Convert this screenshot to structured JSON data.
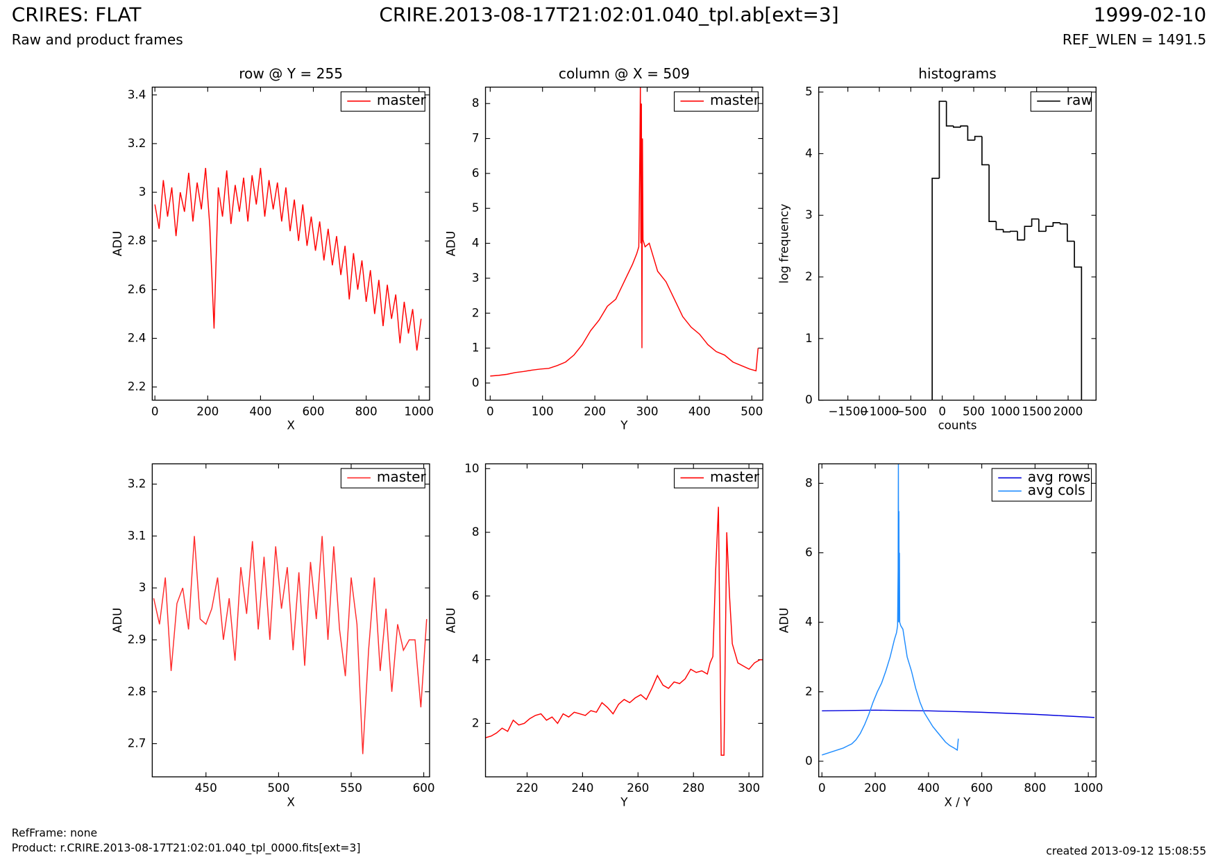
{
  "header": {
    "title": "CRIRES: FLAT",
    "subtitle": "Raw and product frames",
    "file": "CRIRE.2013-08-17T21:02:01.040_tpl.ab[ext=3]",
    "date": "1999-02-10",
    "ref_wlen": "REF_WLEN = 1491.5"
  },
  "footer": {
    "ref_frame": "RefFrame: none",
    "product": "Product: r.CRIRE.2013-08-17T21:02:01.040_tpl_0000.fits[ext=3]",
    "created": "created 2013-09-12 15:08:55"
  },
  "chart_data": [
    {
      "type": "line",
      "title": "row @ Y = 255",
      "x_label": "X",
      "y_label": "ADU",
      "xlim": [
        -10,
        1040
      ],
      "ylim": [
        2.146,
        3.432
      ],
      "xticks": [
        0,
        200,
        400,
        600,
        800,
        1000
      ],
      "yticks": [
        2.2,
        2.4,
        2.6,
        2.8,
        3.0,
        3.2,
        3.4
      ],
      "x": [
        0,
        16,
        32,
        48,
        64,
        80,
        96,
        112,
        128,
        144,
        160,
        176,
        192,
        208,
        224,
        240,
        256,
        272,
        288,
        304,
        320,
        336,
        352,
        368,
        384,
        400,
        416,
        432,
        448,
        464,
        480,
        496,
        512,
        528,
        544,
        560,
        576,
        592,
        608,
        624,
        640,
        656,
        672,
        688,
        704,
        720,
        736,
        752,
        768,
        784,
        800,
        816,
        832,
        848,
        864,
        880,
        896,
        912,
        928,
        944,
        960,
        976,
        992,
        1008
      ],
      "series": [
        {
          "name": "master",
          "color": "#ff0000",
          "values": [
            2.95,
            2.85,
            3.05,
            2.9,
            3.02,
            2.82,
            3.0,
            2.92,
            3.08,
            2.88,
            3.04,
            2.93,
            3.1,
            2.86,
            2.44,
            3.02,
            2.9,
            3.09,
            2.87,
            3.03,
            2.92,
            3.06,
            2.88,
            3.07,
            2.95,
            3.1,
            2.9,
            3.05,
            2.93,
            3.04,
            2.88,
            3.02,
            2.84,
            2.97,
            2.8,
            2.95,
            2.78,
            2.9,
            2.76,
            2.88,
            2.72,
            2.85,
            2.7,
            2.82,
            2.66,
            2.78,
            2.56,
            2.75,
            2.6,
            2.72,
            2.55,
            2.68,
            2.5,
            2.64,
            2.45,
            2.62,
            2.48,
            2.58,
            2.38,
            2.55,
            2.42,
            2.52,
            2.35,
            2.48
          ]
        }
      ]
    },
    {
      "type": "line",
      "title": "column @ X = 509",
      "x_label": "Y",
      "y_label": "ADU",
      "xlim": [
        -9,
        521
      ],
      "ylim": [
        -0.49,
        8.47
      ],
      "xticks": [
        0,
        100,
        200,
        300,
        400,
        500
      ],
      "yticks": [
        0,
        1,
        2,
        3,
        4,
        5,
        6,
        7,
        8
      ],
      "x": [
        0,
        16,
        32,
        48,
        64,
        80,
        96,
        112,
        128,
        144,
        160,
        176,
        192,
        208,
        224,
        240,
        256,
        272,
        280,
        284,
        286,
        287,
        288,
        289,
        290,
        291,
        292,
        296,
        304,
        312,
        320,
        336,
        352,
        368,
        384,
        400,
        416,
        432,
        448,
        464,
        480,
        496,
        508,
        512
      ],
      "series": [
        {
          "name": "master",
          "color": "#ff0000",
          "values": [
            0.2,
            0.22,
            0.25,
            0.3,
            0.33,
            0.37,
            0.4,
            0.42,
            0.5,
            0.6,
            0.8,
            1.1,
            1.5,
            1.8,
            2.2,
            2.4,
            2.9,
            3.4,
            3.7,
            3.9,
            6.6,
            8.5,
            4.0,
            8.0,
            1.0,
            7.0,
            4.1,
            3.9,
            4.0,
            3.6,
            3.2,
            2.9,
            2.4,
            1.9,
            1.6,
            1.4,
            1.1,
            0.9,
            0.8,
            0.6,
            0.5,
            0.4,
            0.35,
            1.0
          ]
        }
      ]
    },
    {
      "type": "histogram",
      "title": "histograms",
      "x_label": "counts",
      "y_label": "log frequency",
      "xlim": [
        -1963,
        2444
      ],
      "ylim": [
        0,
        5.08
      ],
      "xticks": [
        {
          "value": -1500,
          "label": "−1500"
        },
        {
          "value": -1000,
          "label": "−1000"
        },
        {
          "value": -500,
          "label": "−500"
        },
        0,
        500,
        1000,
        1500,
        2000
      ],
      "yticks": [
        0,
        1,
        2,
        3,
        4,
        5
      ],
      "bins": [
        -160,
        -47,
        66,
        179,
        292,
        405,
        518,
        631,
        744,
        857,
        970,
        1083,
        1196,
        1309,
        1422,
        1535,
        1648,
        1761,
        1874,
        1987,
        2100,
        2213
      ],
      "series": [
        {
          "name": "raw",
          "color": "#000000",
          "values": [
            3.6,
            4.85,
            4.45,
            4.43,
            4.45,
            4.22,
            4.28,
            3.82,
            2.9,
            2.77,
            2.73,
            2.74,
            2.6,
            2.82,
            2.94,
            2.74,
            2.82,
            2.88,
            2.86,
            2.58,
            2.16
          ]
        }
      ]
    },
    {
      "type": "line",
      "x_label": "X",
      "y_label": "ADU",
      "xlim": [
        413,
        604
      ],
      "ylim": [
        2.636,
        3.239
      ],
      "xticks": [
        450,
        500,
        550,
        600
      ],
      "yticks": [
        2.7,
        2.8,
        2.9,
        3.0,
        3.1,
        3.2
      ],
      "x": [
        414,
        418,
        422,
        426,
        430,
        434,
        438,
        442,
        446,
        450,
        454,
        458,
        462,
        466,
        470,
        474,
        478,
        482,
        486,
        490,
        494,
        498,
        502,
        506,
        510,
        514,
        518,
        522,
        526,
        530,
        534,
        538,
        542,
        546,
        550,
        554,
        558,
        562,
        566,
        570,
        574,
        578,
        582,
        586,
        590,
        594,
        598,
        602
      ],
      "series": [
        {
          "name": "master",
          "color": "#ff2a2a",
          "values": [
            2.98,
            2.93,
            3.02,
            2.84,
            2.97,
            3.0,
            2.92,
            3.1,
            2.94,
            2.93,
            2.96,
            3.02,
            2.9,
            2.98,
            2.86,
            3.04,
            2.95,
            3.09,
            2.92,
            3.06,
            2.9,
            3.08,
            2.96,
            3.04,
            2.88,
            3.03,
            2.85,
            3.05,
            2.94,
            3.1,
            2.9,
            3.08,
            2.92,
            2.83,
            3.02,
            2.93,
            2.68,
            2.88,
            3.02,
            2.84,
            2.96,
            2.8,
            2.93,
            2.88,
            2.9,
            2.9,
            2.77,
            2.94
          ]
        }
      ]
    },
    {
      "type": "line",
      "x_label": "Y",
      "y_label": "ADU",
      "xlim": [
        205,
        305
      ],
      "ylim": [
        0.32,
        10.15
      ],
      "xticks": [
        220,
        240,
        260,
        280,
        300
      ],
      "yticks": [
        2,
        4,
        6,
        8,
        10
      ],
      "x": [
        205,
        207,
        209,
        211,
        213,
        215,
        217,
        219,
        221,
        223,
        225,
        227,
        229,
        231,
        233,
        235,
        237,
        239,
        241,
        243,
        245,
        247,
        249,
        251,
        253,
        255,
        257,
        259,
        261,
        263,
        265,
        267,
        269,
        271,
        273,
        275,
        277,
        279,
        281,
        283,
        285,
        286,
        287,
        288,
        289,
        290,
        291,
        292,
        293,
        294,
        296,
        298,
        300,
        302,
        304,
        305
      ],
      "series": [
        {
          "name": "master",
          "color": "#ff0000",
          "values": [
            1.55,
            1.6,
            1.7,
            1.85,
            1.75,
            2.1,
            1.95,
            2.0,
            2.15,
            2.25,
            2.3,
            2.1,
            2.2,
            2.0,
            2.3,
            2.2,
            2.35,
            2.3,
            2.25,
            2.4,
            2.35,
            2.65,
            2.5,
            2.3,
            2.6,
            2.75,
            2.65,
            2.8,
            2.9,
            2.75,
            3.1,
            3.5,
            3.2,
            3.1,
            3.3,
            3.25,
            3.4,
            3.7,
            3.6,
            3.65,
            3.55,
            3.9,
            4.1,
            6.8,
            8.8,
            1.0,
            1.0,
            8.0,
            6.0,
            4.5,
            3.9,
            3.8,
            3.7,
            3.9,
            4.0,
            4.0
          ]
        }
      ]
    },
    {
      "type": "line",
      "x_label": "X / Y",
      "y_label": "ADU",
      "xlim": [
        -12,
        1029
      ],
      "ylim": [
        -0.45,
        8.56
      ],
      "xticks": [
        0,
        200,
        400,
        600,
        800,
        1000
      ],
      "yticks": [
        0,
        2,
        4,
        6,
        8
      ],
      "series": [
        {
          "name": "avg rows",
          "color": "#0000dd",
          "x": [
            0,
            100,
            200,
            300,
            400,
            500,
            600,
            700,
            800,
            900,
            1000,
            1023
          ],
          "values": [
            1.45,
            1.46,
            1.47,
            1.46,
            1.45,
            1.43,
            1.41,
            1.38,
            1.35,
            1.31,
            1.27,
            1.26
          ]
        },
        {
          "name": "avg cols",
          "color": "#1e8cff",
          "x": [
            0,
            16,
            32,
            48,
            64,
            80,
            96,
            112,
            128,
            144,
            160,
            176,
            192,
            208,
            224,
            240,
            256,
            272,
            280,
            284,
            286,
            287,
            288,
            289,
            290,
            291,
            292,
            296,
            304,
            312,
            320,
            336,
            352,
            368,
            384,
            400,
            416,
            432,
            448,
            464,
            480,
            496,
            508,
            512
          ],
          "values": [
            0.18,
            0.22,
            0.26,
            0.3,
            0.34,
            0.38,
            0.44,
            0.5,
            0.62,
            0.8,
            1.05,
            1.35,
            1.7,
            2.0,
            2.25,
            2.6,
            3.0,
            3.5,
            3.7,
            3.9,
            5.5,
            8.6,
            4.0,
            7.2,
            4.2,
            6.0,
            4.0,
            3.9,
            3.8,
            3.4,
            3.0,
            2.6,
            2.1,
            1.7,
            1.4,
            1.2,
            1.0,
            0.85,
            0.7,
            0.55,
            0.45,
            0.38,
            0.32,
            0.65
          ]
        }
      ]
    }
  ]
}
